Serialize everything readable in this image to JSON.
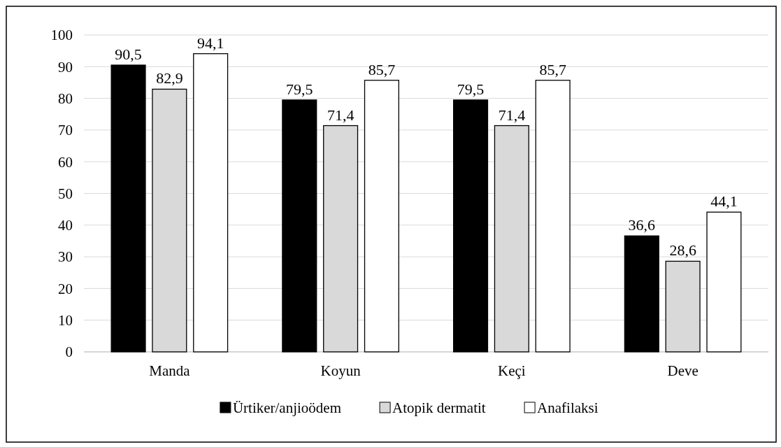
{
  "chart_data": {
    "type": "bar",
    "categories": [
      "Manda",
      "Koyun",
      "Keçi",
      "Deve"
    ],
    "series": [
      {
        "name": "Ürtiker/anjioödem",
        "color": "#000000",
        "values": [
          90.5,
          79.5,
          79.5,
          36.6
        ],
        "value_labels": [
          "90,5",
          "79,5",
          "79,5",
          "36,6"
        ]
      },
      {
        "name": "Atopik dermatit",
        "color": "#d9d9d9",
        "values": [
          82.9,
          71.4,
          71.4,
          28.6
        ],
        "value_labels": [
          "82,9",
          "71,4",
          "71,4",
          "28,6"
        ]
      },
      {
        "name": "Anafilaksi",
        "color": "#ffffff",
        "values": [
          94.1,
          85.7,
          85.7,
          44.1
        ],
        "value_labels": [
          "94,1",
          "85,7",
          "85,7",
          "44,1"
        ]
      }
    ],
    "ylim": [
      0,
      100
    ],
    "yticks": [
      0,
      10,
      20,
      30,
      40,
      50,
      60,
      70,
      80,
      90,
      100
    ],
    "grid": "y",
    "legend": "bottom"
  }
}
